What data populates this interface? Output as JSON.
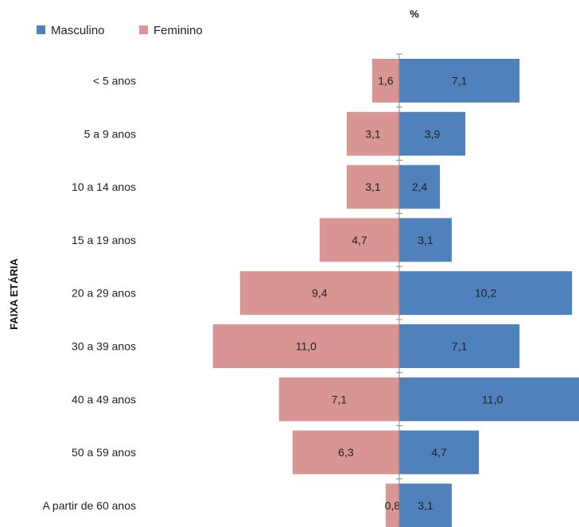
{
  "chart_data": {
    "type": "bar",
    "orientation": "horizontal",
    "subtype": "population-pyramid",
    "title": "%",
    "ylabel": "FAIXA ETÁRIA",
    "categories": [
      "< 5 anos",
      "5 a 9 anos",
      "10 a 14 anos",
      "15 a 19 anos",
      "20 a 29 anos",
      "30 a 39 anos",
      "40 a 49 anos",
      "50 a 59 anos",
      "A partir de 60 anos"
    ],
    "series": [
      {
        "name": "Masculino",
        "color": "#4F81BD",
        "values": [
          7.1,
          3.9,
          2.4,
          3.1,
          10.2,
          7.1,
          11.0,
          4.7,
          3.1
        ],
        "labels": [
          "7,1",
          "3,9",
          "2,4",
          "3,1",
          "10,2",
          "7,1",
          "11,0",
          "4,7",
          "3,1"
        ]
      },
      {
        "name": "Feminino",
        "color": "#D99594",
        "values": [
          1.6,
          3.1,
          3.1,
          4.7,
          9.4,
          11.0,
          7.1,
          6.3,
          0.8
        ],
        "labels": [
          "1,6",
          "3,1",
          "3,1",
          "4,7",
          "9,4",
          "11,0",
          "7,1",
          "6,3",
          "0,8"
        ]
      }
    ],
    "legend": "top-left",
    "grid": false
  }
}
